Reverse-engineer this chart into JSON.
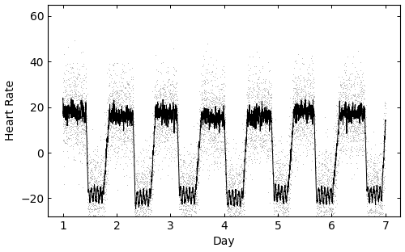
{
  "xlabel": "Day",
  "ylabel": "Heart Rate",
  "xlim": [
    0.72,
    7.28
  ],
  "ylim": [
    -28,
    65
  ],
  "xticks": [
    1,
    2,
    3,
    4,
    5,
    6,
    7
  ],
  "yticks": [
    -20,
    0,
    20,
    40,
    60
  ],
  "background_color": "#ffffff",
  "dot_color": "#b0b0b0",
  "line_color": "#000000",
  "dot_size": 0.5,
  "line_width": 0.7,
  "n_days": 7,
  "points_per_day": 1440,
  "seed": 7
}
